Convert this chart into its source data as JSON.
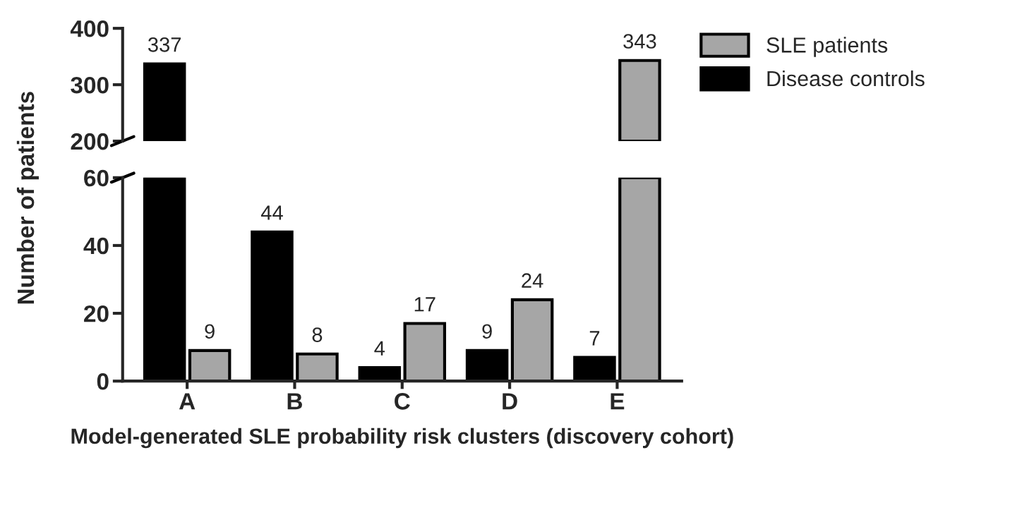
{
  "chart_data": [
    {
      "type": "bar",
      "categories": [
        null,
        null,
        null,
        null,
        null
      ],
      "series": [
        {
          "name": "Disease controls",
          "color": "#000000",
          "values": [
            337,
            null,
            null,
            null,
            null
          ],
          "value_labels": [
            "337",
            null,
            null,
            null,
            null
          ]
        },
        {
          "name": "SLE patients",
          "color": "#a6a6a6",
          "values": [
            null,
            null,
            null,
            null,
            343
          ],
          "value_labels": [
            null,
            null,
            null,
            null,
            "343"
          ]
        }
      ],
      "ylim": [
        200,
        400
      ],
      "yticks": [
        200,
        300,
        400
      ],
      "tick_labels": "y",
      "legend": "top right",
      "grid": false
    },
    {
      "type": "bar",
      "categories": [
        "A",
        "B",
        "C",
        "D",
        "E"
      ],
      "xlabel": "Model-generated SLE probability risk clusters (discovery cohort)",
      "ylabel": "Number of patients",
      "series": [
        {
          "color": "#000000",
          "values": [
            60,
            44,
            4,
            9,
            7
          ],
          "value_labels": [
            null,
            "44",
            "4",
            "9",
            "7"
          ]
        },
        {
          "color": "#a6a6a6",
          "values": [
            9,
            8,
            17,
            24,
            60
          ],
          "value_labels": [
            "9",
            "8",
            "17",
            "24",
            null
          ]
        }
      ],
      "ylim": [
        0,
        60
      ],
      "yticks": [
        0,
        20,
        40,
        60
      ],
      "grid": false
    }
  ]
}
